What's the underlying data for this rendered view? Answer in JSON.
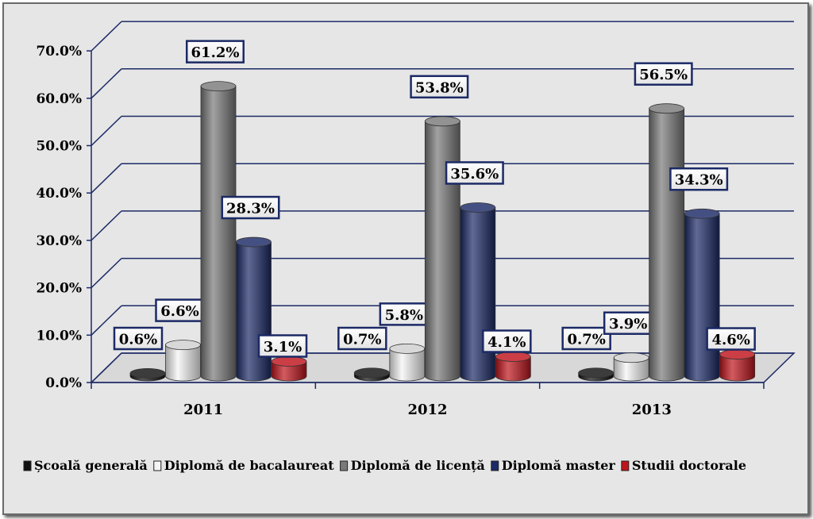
{
  "chart_data": {
    "type": "bar",
    "categories": [
      "2011",
      "2012",
      "2013"
    ],
    "series": [
      {
        "name": "Școală generală",
        "values": [
          0.6,
          0.7,
          0.7
        ],
        "color": "#111111"
      },
      {
        "name": "Diplomă de bacalaureat",
        "values": [
          6.6,
          5.8,
          3.9
        ],
        "color": "#f5f5f5"
      },
      {
        "name": "Diplomă de licență",
        "values": [
          61.2,
          53.8,
          56.5
        ],
        "color": "#7a7a7a"
      },
      {
        "name": "Diplomă master",
        "values": [
          28.3,
          35.6,
          34.3
        ],
        "color": "#1c2a66"
      },
      {
        "name": "Studii doctorale",
        "values": [
          3.1,
          4.1,
          4.6
        ],
        "color": "#c0141c"
      }
    ],
    "data_labels": [
      [
        "0.6%",
        "0.7%",
        "0.7%"
      ],
      [
        "6.6%",
        "5.8%",
        "3.9%"
      ],
      [
        "61.2%",
        "53.8%",
        "56.5%"
      ],
      [
        "28.3%",
        "35.6%",
        "34.3%"
      ],
      [
        "3.1%",
        "4.1%",
        "4.6%"
      ]
    ],
    "y_ticks": [
      "0.0%",
      "10.0%",
      "20.0%",
      "30.0%",
      "40.0%",
      "50.0%",
      "60.0%",
      "70.0%"
    ],
    "ylim": [
      0,
      70
    ],
    "grid": true,
    "legend": "bottom",
    "style": "3d-cylinder"
  }
}
